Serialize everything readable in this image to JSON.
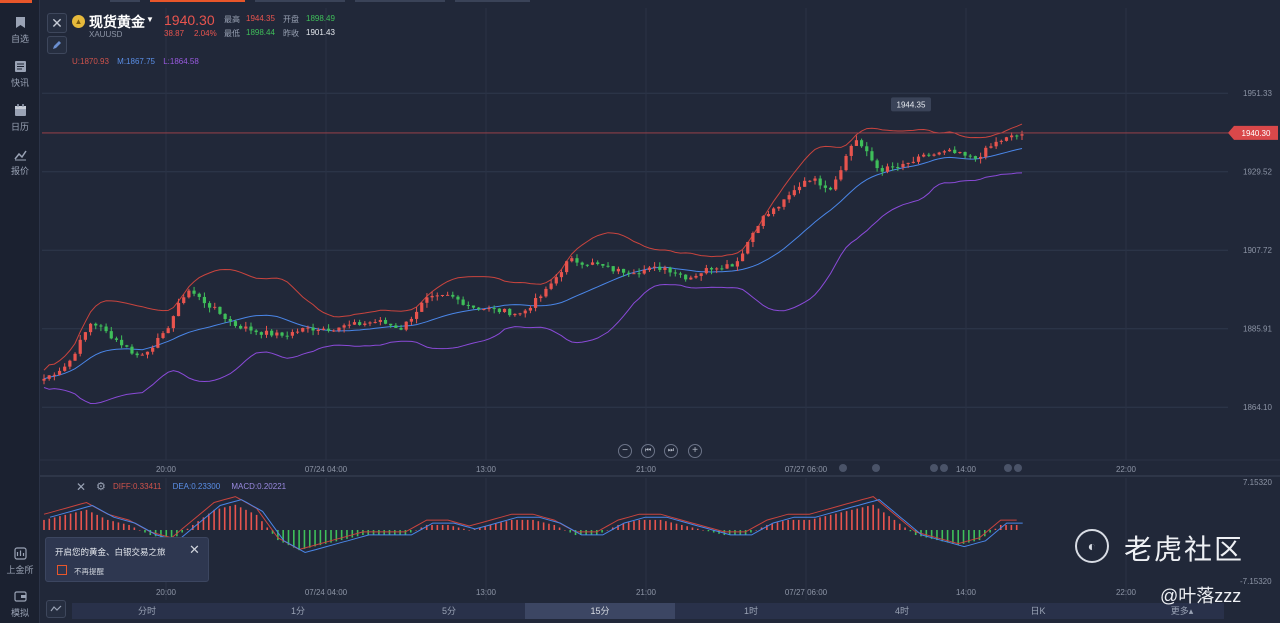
{
  "sidebar": {
    "items": [
      {
        "label": "自选",
        "icon": "bookmark-icon"
      },
      {
        "label": "快讯",
        "icon": "news-icon"
      },
      {
        "label": "日历",
        "icon": "calendar-icon"
      },
      {
        "label": "报价",
        "icon": "chart-line-icon"
      }
    ],
    "bottom_items": [
      {
        "label": "上金所",
        "icon": "exchange-icon"
      },
      {
        "label": "模拟",
        "icon": "wallet-icon"
      }
    ]
  },
  "header": {
    "symbol_name": "现货黄金",
    "symbol_code": "XAUUSD",
    "last_price": "1940.30",
    "change_abs": "38.87",
    "change_pct": "2.04%",
    "high_label": "最高",
    "high_value": "1944.35",
    "open_label": "开盘",
    "open_value": "1898.49",
    "low_label": "最低",
    "low_value": "1898.44",
    "prev_close_label": "昨收",
    "prev_close_value": "1901.43"
  },
  "boll_legend": {
    "upper": "U:1870.93",
    "middle": "M:1867.75",
    "lower": "L:1864.58"
  },
  "price_axis": {
    "ticks": [
      "1951.33",
      "1929.52",
      "1907.72",
      "1885.91",
      "1864.10"
    ],
    "current_price_tag": "1940.30",
    "max_label": "1944.35"
  },
  "time_axis": {
    "labels": [
      "20:00",
      "07/24 04:00",
      "13:00",
      "21:00",
      "07/27 06:00",
      "14:00",
      "22:00"
    ]
  },
  "macd_legend": {
    "diff": "DIFF:0.33411",
    "dea": "DEA:0.23300",
    "macd": "MACD:0.20221"
  },
  "macd_axis": {
    "top": "7.15320",
    "bottom": "-7.15320"
  },
  "notice": {
    "text": "开启您的黄金、白银交易之旅",
    "checkbox_label": "不再提醒"
  },
  "periods": [
    {
      "label": "分时",
      "active": false
    },
    {
      "label": "1分",
      "active": false
    },
    {
      "label": "5分",
      "active": false
    },
    {
      "label": "15分",
      "active": true
    },
    {
      "label": "1时",
      "active": false
    },
    {
      "label": "4时",
      "active": false
    },
    {
      "label": "日K",
      "active": false
    },
    {
      "label": "更多▴",
      "active": false
    }
  ],
  "zoom_controls": [
    "−",
    "⏮",
    "⏭",
    "+"
  ],
  "watermark": {
    "brand": "老虎社区",
    "user": "@叶落zzz"
  },
  "colors": {
    "up": "#e8544e",
    "down": "#3fbf5a",
    "boll_upper": "#c9443e",
    "boll_middle": "#4a86e8",
    "boll_lower": "#8a4ad8",
    "background": "#212839"
  },
  "chart_data": {
    "type": "candlestick",
    "symbol": "XAUUSD",
    "interval": "15分",
    "ylim": [
      1855,
      1960
    ],
    "grid": true,
    "indicators": [
      "BOLL",
      "MACD"
    ],
    "price_path": [
      1872,
      1876,
      1888,
      1883,
      1878,
      1884,
      1897,
      1892,
      1887,
      1885,
      1884,
      1886,
      1886,
      1887,
      1888,
      1886,
      1894,
      1895,
      1892,
      1891,
      1890,
      1896,
      1905,
      1904,
      1902,
      1902,
      1903,
      1900,
      1903,
      1904,
      1916,
      1921,
      1928,
      1925,
      1939,
      1930,
      1931,
      1934,
      1935,
      1933,
      1938,
      1940
    ],
    "macd_histogram": [
      2,
      3,
      4,
      2,
      1,
      -1,
      -2,
      1,
      4,
      5,
      3,
      -2,
      -4,
      -3,
      -2,
      -1,
      -1,
      -1,
      1,
      1,
      0,
      1,
      2,
      2,
      1,
      -1,
      -1,
      1,
      2,
      2,
      1,
      0,
      -1,
      -1,
      1,
      2,
      2,
      3,
      4,
      5,
      2,
      -1,
      -2,
      -3,
      -2,
      1
    ]
  }
}
